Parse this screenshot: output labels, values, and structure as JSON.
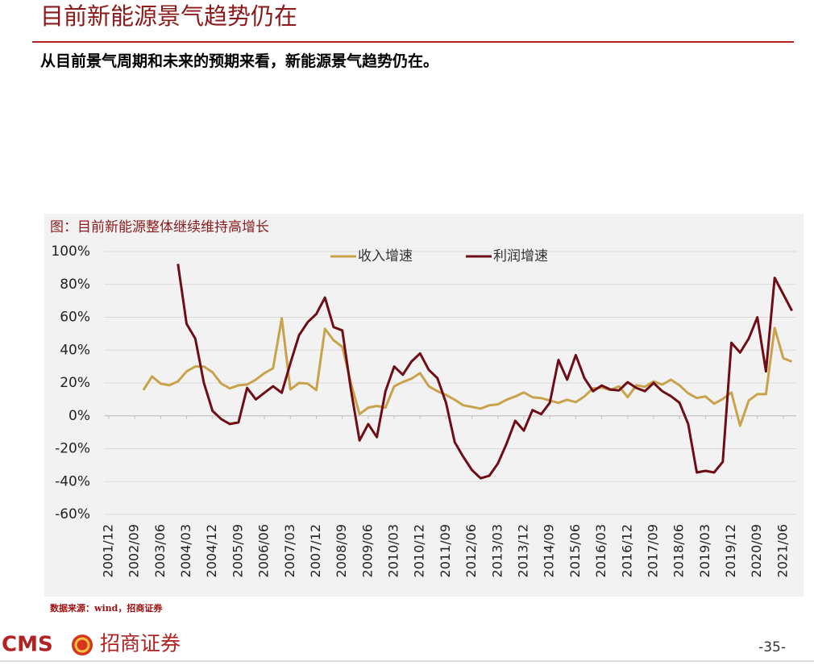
{
  "header": {
    "title": "目前新能源景气趋势仍在",
    "subtitle": "从目前景气周期和未来的预期来看，新能源景气趋势仍在。"
  },
  "chart_data": {
    "type": "line",
    "title": "图：目前新能源整体继续维持高增长",
    "categories": [
      "2001/12",
      null,
      null,
      "2002/09",
      null,
      null,
      "2003/06",
      null,
      null,
      "2004/03",
      null,
      null,
      "2004/12",
      null,
      null,
      "2005/09",
      null,
      null,
      "2006/06",
      null,
      null,
      "2007/03",
      null,
      null,
      "2007/12",
      null,
      null,
      "2008/09",
      null,
      null,
      "2009/06",
      null,
      null,
      "2010/03",
      null,
      null,
      "2010/12",
      null,
      null,
      "2011/09",
      null,
      null,
      "2012/06",
      null,
      null,
      "2013/03",
      null,
      null,
      "2013/12",
      null,
      null,
      "2014/09",
      null,
      null,
      "2015/06",
      null,
      null,
      "2016/03",
      null,
      null,
      "2016/12",
      null,
      null,
      "2017/09",
      null,
      null,
      "2018/06",
      null,
      null,
      "2019/03",
      null,
      null,
      "2019/12",
      null,
      null,
      "2020/09",
      null,
      null,
      "2021/06",
      null
    ],
    "series": [
      {
        "name": "收入增速",
        "color": "#c9a24c",
        "values": [
          null,
          null,
          null,
          null,
          15.7,
          24,
          19.6,
          18.6,
          21,
          27,
          30,
          30,
          26.5,
          19.6,
          16.7,
          18.6,
          19,
          22,
          26,
          29,
          59.4,
          16,
          20,
          19.6,
          15.7,
          53,
          46,
          42,
          20,
          1,
          5,
          6,
          5,
          18,
          20.6,
          22.6,
          26,
          18,
          15,
          12.8,
          9.8,
          6.4,
          5.4,
          4.4,
          6.4,
          7,
          9.8,
          11.8,
          14.2,
          11.3,
          10.8,
          9.3,
          7.9,
          9.8,
          8.3,
          11.8,
          16.7,
          17.2,
          15.7,
          18,
          11.3,
          18.6,
          17.7,
          21,
          19,
          22,
          18.6,
          13.7,
          10.8,
          11.8,
          7.4,
          10.3,
          14.2,
          -6,
          9.3,
          13.2,
          13.2,
          53.5,
          35,
          33
        ]
      },
      {
        "name": "利润增速",
        "color": "#6e0d16",
        "values": [
          null,
          null,
          null,
          null,
          null,
          null,
          null,
          null,
          92.5,
          56,
          47,
          20,
          3,
          -2,
          -5,
          -4,
          17,
          10,
          14,
          18,
          14,
          32,
          49,
          57,
          62,
          72,
          54,
          52,
          16,
          -15,
          -5,
          -13,
          15,
          30,
          25,
          33,
          38,
          28,
          23,
          8,
          -16,
          -25,
          -33,
          -38,
          -36.5,
          -29,
          -17,
          -3,
          -9,
          3.5,
          1,
          8,
          34,
          22,
          37,
          23,
          15,
          18.5,
          16,
          15.5,
          20.5,
          17,
          15,
          20,
          15,
          12,
          8,
          -5,
          -34.5,
          -33.5,
          -34.5,
          -28,
          44.5,
          38.5,
          47,
          60,
          27,
          84,
          74,
          64
        ]
      }
    ],
    "ylim": [
      -60,
      100
    ],
    "yticks": [
      {
        "value": -60,
        "label": "-60%"
      },
      {
        "value": -40,
        "label": "-40%"
      },
      {
        "value": -20,
        "label": "-20%"
      },
      {
        "value": 0,
        "label": "0%"
      },
      {
        "value": 20,
        "label": "20%"
      },
      {
        "value": 40,
        "label": "40%"
      },
      {
        "value": 60,
        "label": "60%"
      },
      {
        "value": 80,
        "label": "80%"
      },
      {
        "value": 100,
        "label": "100%"
      }
    ],
    "grid": true,
    "legend": "top"
  },
  "footer": {
    "source": "数据来源：wind，招商证券",
    "brand": "CMS",
    "brand_cn": "招商证券",
    "page": "-35-"
  }
}
